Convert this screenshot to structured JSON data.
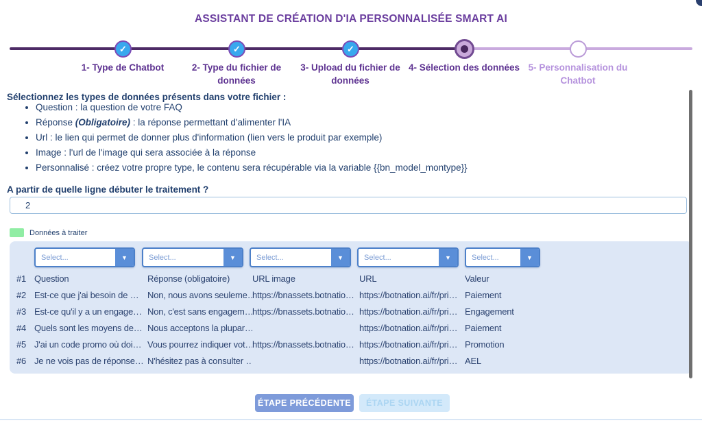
{
  "title": "ASSISTANT DE CRÉATION D'IA PERSONNALISÉE SMART AI",
  "stepper": {
    "check_glyph": "✓",
    "steps": [
      {
        "label": "1- Type de Chatbot",
        "state": "completed"
      },
      {
        "label": "2- Type du fichier de données",
        "state": "completed"
      },
      {
        "label": "3- Upload du fichier de données",
        "state": "completed"
      },
      {
        "label": "4- Sélection des données",
        "state": "current"
      },
      {
        "label": "5- Personnalisation du Chatbot",
        "state": "upcoming"
      }
    ]
  },
  "instructions": {
    "heading": "Sélectionnez les types de données présents dans votre fichier :",
    "bullet_question": "Question : la question de votre FAQ",
    "bullet_reponse_prefix": "Réponse ",
    "bullet_reponse_bold": "(Obligatoire)",
    "bullet_reponse_rest": " : la réponse permettant d'alimenter l'IA",
    "bullet_url": "Url : le lien qui permet de donner plus d'information (lien vers le produit par exemple)",
    "bullet_image": "Image : l'url de l'image qui sera associée à la réponse",
    "bullet_perso": "Personnalisé : créez votre propre type, le contenu sera récupérable via la variable {{bn_model_montype}}"
  },
  "line_start": {
    "label": "A partir de quelle ligne débuter le traitement ?",
    "value": "2"
  },
  "legend": {
    "label": "Données à traiter",
    "swatch_color": "#90eda4"
  },
  "table": {
    "select_placeholder": "Select...",
    "header": {
      "num": "#1",
      "cells": [
        "Question",
        "Réponse (obligatoire)",
        "URL image",
        "URL",
        "Valeur"
      ]
    },
    "rows": [
      {
        "num": "#2",
        "cells": [
          "Est-ce que j'ai besoin de …",
          "Non, nous avons seuleme…",
          "https://bnassets.botnatio…",
          "https://botnation.ai/fr/pri…",
          "Paiement"
        ]
      },
      {
        "num": "#3",
        "cells": [
          "Est-ce qu'il y a un engage…",
          "Non, c'est sans engagem…",
          "https://bnassets.botnatio…",
          "https://botnation.ai/fr/pri…",
          "Engagement"
        ]
      },
      {
        "num": "#4",
        "cells": [
          "Quels sont les moyens de…",
          "Nous acceptons la plupar…",
          "",
          "https://botnation.ai/fr/pri…",
          "Paiement"
        ]
      },
      {
        "num": "#5",
        "cells": [
          "J'ai un code promo où doi…",
          "Vous pourrez indiquer vot…",
          "https://bnassets.botnatio…",
          "https://botnation.ai/fr/pri…",
          "Promotion"
        ]
      },
      {
        "num": "#6",
        "cells": [
          "Je ne vois pas de réponse…",
          "N'hésitez pas à consulter …",
          "",
          "https://botnation.ai/fr/pri…",
          "AEL"
        ]
      }
    ]
  },
  "buttons": {
    "previous": "ÉTAPE PRÉCÉDENTE",
    "next": "ÉTAPE SUIVANTE"
  },
  "colors": {
    "accent_purple": "#6a3d9e",
    "stepper_dark": "#4d2b66",
    "stepper_light": "#c9aade",
    "step_done_fill": "#38a8ee",
    "text_navy": "#22406e",
    "table_bg": "#dde7f6",
    "dropdown_blue": "#5a8ed8",
    "btn_prev_bg": "#7e9bda",
    "btn_next_bg": "#d3e9fa"
  }
}
